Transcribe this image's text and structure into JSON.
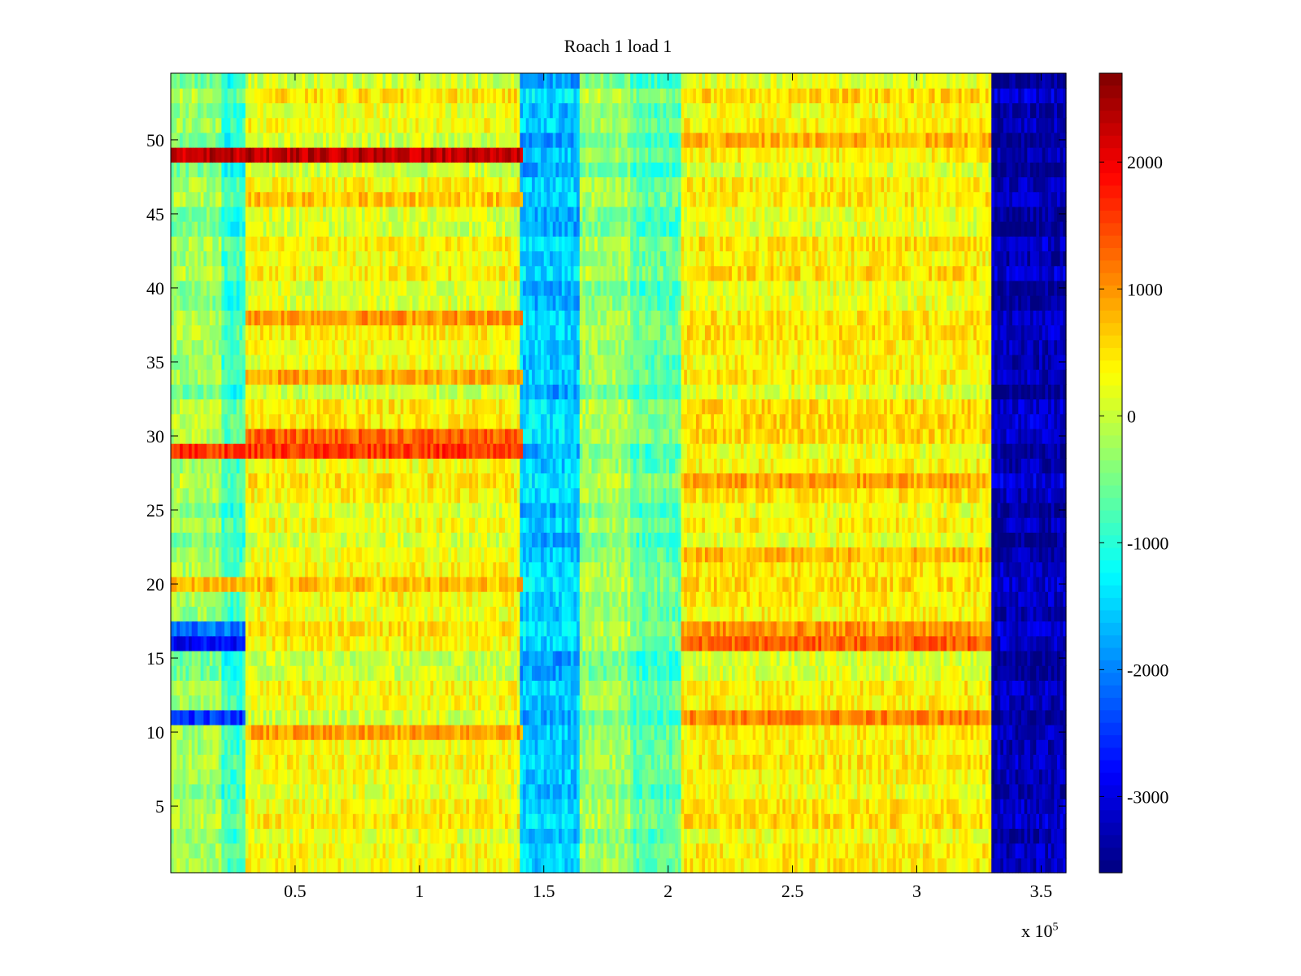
{
  "chart_data": {
    "type": "heatmap",
    "title": "Roach 1 load 1",
    "xlabel": "",
    "ylabel": "",
    "x_exponent_label": {
      "prefix": "x 10",
      "power": "5"
    },
    "xlim": [
      0,
      3.6
    ],
    "ylim": [
      0.5,
      54.5
    ],
    "x_ticks": [
      0.5,
      1,
      1.5,
      2,
      2.5,
      3,
      3.5
    ],
    "x_tick_labels": [
      "0.5",
      "1",
      "1.5",
      "2",
      "2.5",
      "3",
      "3.5"
    ],
    "y_ticks": [
      5,
      10,
      15,
      20,
      25,
      30,
      35,
      40,
      45,
      50
    ],
    "y_tick_labels": [
      "5",
      "10",
      "15",
      "20",
      "25",
      "30",
      "35",
      "40",
      "45",
      "50"
    ],
    "colormap": "jet",
    "clim": [
      -3600,
      2700
    ],
    "colorbar_ticks": [
      2000,
      1000,
      0,
      -1000,
      -2000,
      -3000
    ],
    "colorbar_tick_labels": [
      "2000",
      "1000",
      "0",
      "-1000",
      "-2000",
      "-3000"
    ],
    "rows": 54,
    "column_segments_x": [
      0,
      0.2,
      0.3,
      1.4,
      1.65,
      1.85,
      2.05,
      3.3,
      3.6
    ],
    "segment_baseline_values": [
      -300,
      -900,
      250,
      -1600,
      -300,
      -700,
      350,
      -3300
    ],
    "row_highlights": [
      {
        "row": 49,
        "x_range": [
          0,
          1.42
        ],
        "value": 2300
      },
      {
        "row": 29,
        "x_range": [
          0,
          1.42
        ],
        "value": 1600
      },
      {
        "row": 30,
        "x_range": [
          0.3,
          1.42
        ],
        "value": 1300
      },
      {
        "row": 38,
        "x_range": [
          0.3,
          1.42
        ],
        "value": 1000
      },
      {
        "row": 34,
        "x_range": [
          0.3,
          1.42
        ],
        "value": 900
      },
      {
        "row": 10,
        "x_range": [
          0.3,
          1.42
        ],
        "value": 900
      },
      {
        "row": 16,
        "x_range": [
          2.05,
          3.3
        ],
        "value": 1300
      },
      {
        "row": 17,
        "x_range": [
          2.05,
          3.3
        ],
        "value": 1000
      },
      {
        "row": 11,
        "x_range": [
          2.05,
          3.3
        ],
        "value": 1100
      },
      {
        "row": 16,
        "x_range": [
          0,
          0.3
        ],
        "value": -2800
      },
      {
        "row": 11,
        "x_range": [
          0,
          0.3
        ],
        "value": -2500
      },
      {
        "row": 17,
        "x_range": [
          0,
          0.3
        ],
        "value": -2100
      },
      {
        "row": 46,
        "x_range": [
          0.3,
          1.42
        ],
        "value": 700
      },
      {
        "row": 20,
        "x_range": [
          0,
          1.42
        ],
        "value": 700
      },
      {
        "row": 22,
        "x_range": [
          2.05,
          3.3
        ],
        "value": 800
      },
      {
        "row": 27,
        "x_range": [
          2.05,
          3.3
        ],
        "value": 900
      },
      {
        "row": 50,
        "x_range": [
          2.05,
          3.3
        ],
        "value": 800
      }
    ]
  }
}
